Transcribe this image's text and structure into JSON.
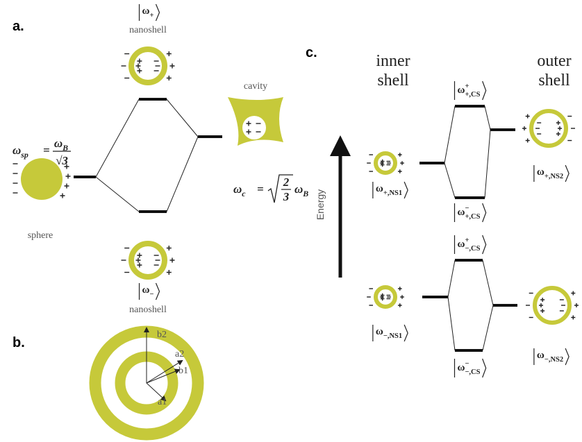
{
  "panels": {
    "a": "a.",
    "b": "b.",
    "c": "c."
  },
  "panel_a": {
    "top_state": {
      "symbol": "ω",
      "sub": "+"
    },
    "top_caption": "nanoshell",
    "bottom_state": {
      "symbol": "ω",
      "sub": "−"
    },
    "bottom_caption": "nanoshell",
    "sphere_caption": "sphere",
    "cavity_caption": "cavity",
    "sphere_eq": {
      "lhs": {
        "symbol": "ω",
        "sub": "sp"
      },
      "eq": "=",
      "num": {
        "symbol": "ω",
        "sub": "B"
      },
      "den": "√3"
    },
    "cavity_eq": {
      "lhs": {
        "symbol": "ω",
        "sub": "c"
      },
      "eq": "=",
      "num": "2",
      "den": "3",
      "rhs": {
        "symbol": "ω",
        "sub": "B"
      }
    }
  },
  "panel_b": {
    "labels": [
      "b2",
      "a2",
      "b1",
      "a1"
    ]
  },
  "panel_c": {
    "inner_title": [
      "inner",
      "shell"
    ],
    "outer_title": [
      "outer",
      "shell"
    ],
    "axis_label": "Energy",
    "kets": [
      {
        "symbol": "ω",
        "sub": "+,NS1"
      },
      {
        "symbol": "ω",
        "sup": "+",
        "sub": "+,CS"
      },
      {
        "symbol": "ω",
        "sup": "−",
        "sub": "+,CS"
      },
      {
        "symbol": "ω",
        "sub": "+,NS2"
      },
      {
        "symbol": "ω",
        "sub": "−,NS1"
      },
      {
        "symbol": "ω",
        "sup": "+",
        "sub": "−,CS"
      },
      {
        "symbol": "ω",
        "sup": "−",
        "sub": "−,CS"
      },
      {
        "symbol": "ω",
        "sub": "−,NS2"
      }
    ]
  }
}
